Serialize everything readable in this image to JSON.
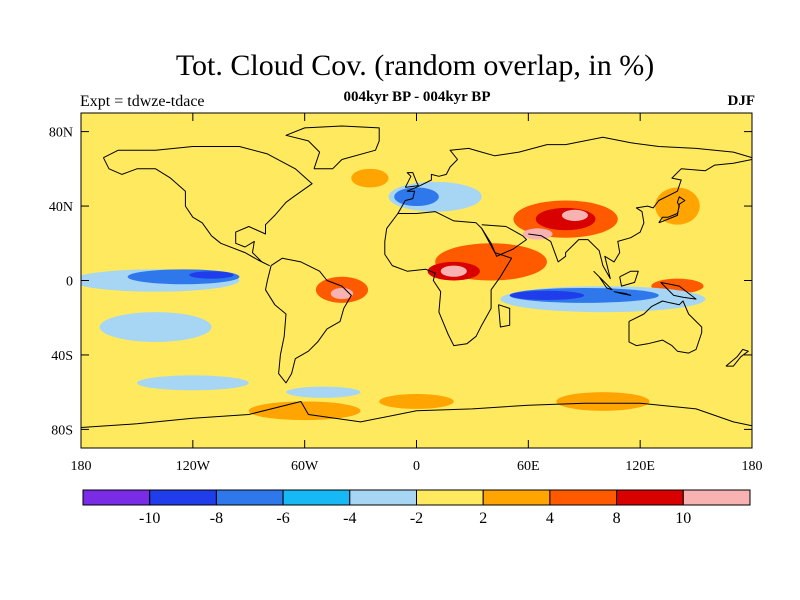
{
  "title": "Tot. Cloud Cov. (random overlap, in %)",
  "subtitle": "004kyr BP - 004kyr BP",
  "experiment_label": "Expt = tdwze-tdace",
  "season_label": "DJF",
  "map": {
    "lon_range": [
      -180,
      180
    ],
    "lat_range": [
      -90,
      90
    ],
    "lon_ticks": [
      {
        "value": -180,
        "label": "180"
      },
      {
        "value": -120,
        "label": "120W"
      },
      {
        "value": -60,
        "label": "60W"
      },
      {
        "value": 0,
        "label": "0"
      },
      {
        "value": 60,
        "label": "60E"
      },
      {
        "value": 120,
        "label": "120E"
      },
      {
        "value": 180,
        "label": "180"
      }
    ],
    "lat_ticks": [
      {
        "value": 80,
        "label": "80N"
      },
      {
        "value": 40,
        "label": "40N"
      },
      {
        "value": 0,
        "label": "0"
      },
      {
        "value": -40,
        "label": "40S"
      },
      {
        "value": -80,
        "label": "80S"
      }
    ],
    "background_class_color": "#ffe95f"
  },
  "colorbar": {
    "colors": [
      "#7a2be6",
      "#1f3dea",
      "#2f78ec",
      "#16b9f5",
      "#a6d6f4",
      "#ffe95f",
      "#ffa400",
      "#ff5a00",
      "#d90000",
      "#f9b2b2"
    ],
    "labels": [
      "-10",
      "-8",
      "-6",
      "-4",
      "-2",
      "2",
      "4",
      "8",
      "10"
    ]
  },
  "anomalies": [
    {
      "lon": 40,
      "lat": 10,
      "rx": 30,
      "ry": 10,
      "color": "#ff5a00"
    },
    {
      "lon": 20,
      "lat": 5,
      "rx": 14,
      "ry": 5,
      "color": "#d90000"
    },
    {
      "lon": 20,
      "lat": 5,
      "rx": 7,
      "ry": 3,
      "color": "#f9b2b2"
    },
    {
      "lon": 80,
      "lat": 33,
      "rx": 28,
      "ry": 10,
      "color": "#ff5a00"
    },
    {
      "lon": 80,
      "lat": 33,
      "rx": 16,
      "ry": 6,
      "color": "#d90000"
    },
    {
      "lon": 85,
      "lat": 35,
      "rx": 7,
      "ry": 3,
      "color": "#f9b2b2"
    },
    {
      "lon": -40,
      "lat": -5,
      "rx": 14,
      "ry": 7,
      "color": "#ff5a00"
    },
    {
      "lon": -40,
      "lat": -7,
      "rx": 6,
      "ry": 3,
      "color": "#f9b2b2"
    },
    {
      "lon": 65,
      "lat": 25,
      "rx": 8,
      "ry": 3,
      "color": "#f9b2b2"
    },
    {
      "lon": 140,
      "lat": -3,
      "rx": 14,
      "ry": 4,
      "color": "#ff5a00"
    },
    {
      "lon": -140,
      "lat": 0,
      "rx": 45,
      "ry": 6,
      "color": "#a6d6f4"
    },
    {
      "lon": -125,
      "lat": 2,
      "rx": 30,
      "ry": 4,
      "color": "#2f78ec"
    },
    {
      "lon": -110,
      "lat": 3,
      "rx": 12,
      "ry": 2,
      "color": "#1f3dea"
    },
    {
      "lon": 100,
      "lat": -10,
      "rx": 55,
      "ry": 7,
      "color": "#a6d6f4"
    },
    {
      "lon": 90,
      "lat": -8,
      "rx": 40,
      "ry": 4,
      "color": "#2f78ec"
    },
    {
      "lon": 70,
      "lat": -8,
      "rx": 20,
      "ry": 2.5,
      "color": "#1f3dea"
    },
    {
      "lon": 10,
      "lat": 45,
      "rx": 25,
      "ry": 8,
      "color": "#a6d6f4"
    },
    {
      "lon": 0,
      "lat": 45,
      "rx": 12,
      "ry": 5,
      "color": "#2f78ec"
    },
    {
      "lon": -25,
      "lat": 55,
      "rx": 10,
      "ry": 5,
      "color": "#ffa400"
    },
    {
      "lon": 140,
      "lat": 40,
      "rx": 12,
      "ry": 10,
      "color": "#ffa400"
    },
    {
      "lon": -140,
      "lat": -25,
      "rx": 30,
      "ry": 8,
      "color": "#a6d6f4"
    },
    {
      "lon": -60,
      "lat": -70,
      "rx": 30,
      "ry": 5,
      "color": "#ffa400"
    },
    {
      "lon": 0,
      "lat": -65,
      "rx": 20,
      "ry": 4,
      "color": "#ffa400"
    },
    {
      "lon": 100,
      "lat": -65,
      "rx": 25,
      "ry": 5,
      "color": "#ffa400"
    },
    {
      "lon": -120,
      "lat": -55,
      "rx": 30,
      "ry": 4,
      "color": "#a6d6f4"
    },
    {
      "lon": -50,
      "lat": -60,
      "rx": 20,
      "ry": 3,
      "color": "#a6d6f4"
    }
  ]
}
